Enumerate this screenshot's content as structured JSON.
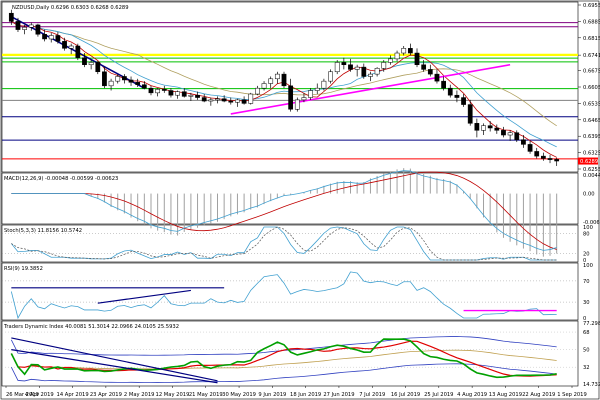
{
  "chart_data": {
    "type": "line",
    "symbol_header": "NZDUSD,Daily  0.6296 0.6303 0.6268 0.6289",
    "price_axis_ticks": [
      "0.6955",
      "0.6885",
      "0.6815",
      "0.6741",
      "0.6675",
      "0.6605",
      "0.6535",
      "0.6465",
      "0.6395",
      "0.6325",
      "0.6255"
    ],
    "price_ylim": [
      0.6255,
      0.6955
    ],
    "current_price_label": "0.6289",
    "x_tick_labels": [
      "26 Mar 2019",
      "4 Apr 2019",
      "14 Apr 2019",
      "23 Apr 2019",
      "2 May 2019",
      "12 May 2019",
      "21 May 2019",
      "30 May 2019",
      "9 Jun 2019",
      "18 Jun 2019",
      "27 Jun 2019",
      "7 Jul 2019",
      "16 Jul 2019",
      "25 Jul 2019",
      "4 Aug 2019",
      "13 Aug 2019",
      "22 Aug 2019",
      "1 Sep 2019"
    ],
    "candles": [
      {
        "o": 0.692,
        "h": 0.6935,
        "l": 0.687,
        "c": 0.6885
      },
      {
        "o": 0.6885,
        "h": 0.69,
        "l": 0.684,
        "c": 0.685
      },
      {
        "o": 0.685,
        "h": 0.687,
        "l": 0.683,
        "c": 0.686
      },
      {
        "o": 0.686,
        "h": 0.688,
        "l": 0.6845,
        "c": 0.687
      },
      {
        "o": 0.687,
        "h": 0.6875,
        "l": 0.682,
        "c": 0.683
      },
      {
        "o": 0.683,
        "h": 0.685,
        "l": 0.68,
        "c": 0.681
      },
      {
        "o": 0.681,
        "h": 0.6835,
        "l": 0.6795,
        "c": 0.6825
      },
      {
        "o": 0.6825,
        "h": 0.684,
        "l": 0.679,
        "c": 0.68
      },
      {
        "o": 0.68,
        "h": 0.6815,
        "l": 0.676,
        "c": 0.677
      },
      {
        "o": 0.677,
        "h": 0.679,
        "l": 0.6745,
        "c": 0.678
      },
      {
        "o": 0.678,
        "h": 0.679,
        "l": 0.672,
        "c": 0.673
      },
      {
        "o": 0.673,
        "h": 0.675,
        "l": 0.669,
        "c": 0.67
      },
      {
        "o": 0.67,
        "h": 0.672,
        "l": 0.668,
        "c": 0.671
      },
      {
        "o": 0.671,
        "h": 0.6715,
        "l": 0.666,
        "c": 0.667
      },
      {
        "o": 0.667,
        "h": 0.669,
        "l": 0.66,
        "c": 0.661
      },
      {
        "o": 0.661,
        "h": 0.664,
        "l": 0.659,
        "c": 0.663
      },
      {
        "o": 0.663,
        "h": 0.666,
        "l": 0.662,
        "c": 0.665
      },
      {
        "o": 0.665,
        "h": 0.666,
        "l": 0.662,
        "c": 0.6635
      },
      {
        "o": 0.6635,
        "h": 0.665,
        "l": 0.661,
        "c": 0.6625
      },
      {
        "o": 0.6625,
        "h": 0.664,
        "l": 0.6605,
        "c": 0.6615
      },
      {
        "o": 0.6615,
        "h": 0.663,
        "l": 0.6595,
        "c": 0.66
      },
      {
        "o": 0.66,
        "h": 0.661,
        "l": 0.657,
        "c": 0.658
      },
      {
        "o": 0.658,
        "h": 0.66,
        "l": 0.6565,
        "c": 0.6595
      },
      {
        "o": 0.6595,
        "h": 0.661,
        "l": 0.658,
        "c": 0.659
      },
      {
        "o": 0.659,
        "h": 0.66,
        "l": 0.656,
        "c": 0.657
      },
      {
        "o": 0.657,
        "h": 0.659,
        "l": 0.6555,
        "c": 0.6585
      },
      {
        "o": 0.6585,
        "h": 0.66,
        "l": 0.656,
        "c": 0.6565
      },
      {
        "o": 0.6565,
        "h": 0.658,
        "l": 0.6545,
        "c": 0.657
      },
      {
        "o": 0.657,
        "h": 0.6585,
        "l": 0.655,
        "c": 0.656
      },
      {
        "o": 0.656,
        "h": 0.6575,
        "l": 0.654,
        "c": 0.6545
      },
      {
        "o": 0.6545,
        "h": 0.656,
        "l": 0.6525,
        "c": 0.655
      },
      {
        "o": 0.655,
        "h": 0.6565,
        "l": 0.6535,
        "c": 0.6555
      },
      {
        "o": 0.6555,
        "h": 0.657,
        "l": 0.654,
        "c": 0.6545
      },
      {
        "o": 0.6545,
        "h": 0.656,
        "l": 0.653,
        "c": 0.654
      },
      {
        "o": 0.654,
        "h": 0.6555,
        "l": 0.652,
        "c": 0.655
      },
      {
        "o": 0.655,
        "h": 0.6565,
        "l": 0.653,
        "c": 0.6535
      },
      {
        "o": 0.6535,
        "h": 0.658,
        "l": 0.653,
        "c": 0.6575
      },
      {
        "o": 0.6575,
        "h": 0.661,
        "l": 0.657,
        "c": 0.66
      },
      {
        "o": 0.66,
        "h": 0.663,
        "l": 0.659,
        "c": 0.662
      },
      {
        "o": 0.662,
        "h": 0.665,
        "l": 0.66,
        "c": 0.664
      },
      {
        "o": 0.664,
        "h": 0.667,
        "l": 0.662,
        "c": 0.666
      },
      {
        "o": 0.666,
        "h": 0.667,
        "l": 0.66,
        "c": 0.661
      },
      {
        "o": 0.661,
        "h": 0.664,
        "l": 0.65,
        "c": 0.651
      },
      {
        "o": 0.651,
        "h": 0.656,
        "l": 0.65,
        "c": 0.655
      },
      {
        "o": 0.655,
        "h": 0.658,
        "l": 0.654,
        "c": 0.656
      },
      {
        "o": 0.656,
        "h": 0.66,
        "l": 0.655,
        "c": 0.659
      },
      {
        "o": 0.659,
        "h": 0.662,
        "l": 0.6575,
        "c": 0.66
      },
      {
        "o": 0.66,
        "h": 0.664,
        "l": 0.659,
        "c": 0.663
      },
      {
        "o": 0.663,
        "h": 0.668,
        "l": 0.662,
        "c": 0.667
      },
      {
        "o": 0.667,
        "h": 0.672,
        "l": 0.666,
        "c": 0.671
      },
      {
        "o": 0.671,
        "h": 0.673,
        "l": 0.668,
        "c": 0.67
      },
      {
        "o": 0.67,
        "h": 0.6725,
        "l": 0.667,
        "c": 0.668
      },
      {
        "o": 0.668,
        "h": 0.67,
        "l": 0.665,
        "c": 0.669
      },
      {
        "o": 0.669,
        "h": 0.6705,
        "l": 0.664,
        "c": 0.665
      },
      {
        "o": 0.665,
        "h": 0.667,
        "l": 0.663,
        "c": 0.666
      },
      {
        "o": 0.666,
        "h": 0.669,
        "l": 0.665,
        "c": 0.6685
      },
      {
        "o": 0.6685,
        "h": 0.672,
        "l": 0.667,
        "c": 0.671
      },
      {
        "o": 0.671,
        "h": 0.674,
        "l": 0.67,
        "c": 0.6725
      },
      {
        "o": 0.6725,
        "h": 0.676,
        "l": 0.6715,
        "c": 0.675
      },
      {
        "o": 0.675,
        "h": 0.678,
        "l": 0.674,
        "c": 0.677
      },
      {
        "o": 0.677,
        "h": 0.679,
        "l": 0.674,
        "c": 0.675
      },
      {
        "o": 0.675,
        "h": 0.677,
        "l": 0.669,
        "c": 0.67
      },
      {
        "o": 0.67,
        "h": 0.672,
        "l": 0.667,
        "c": 0.668
      },
      {
        "o": 0.668,
        "h": 0.67,
        "l": 0.665,
        "c": 0.666
      },
      {
        "o": 0.666,
        "h": 0.668,
        "l": 0.662,
        "c": 0.663
      },
      {
        "o": 0.663,
        "h": 0.665,
        "l": 0.659,
        "c": 0.66
      },
      {
        "o": 0.66,
        "h": 0.6615,
        "l": 0.656,
        "c": 0.657
      },
      {
        "o": 0.657,
        "h": 0.659,
        "l": 0.654,
        "c": 0.656
      },
      {
        "o": 0.656,
        "h": 0.6575,
        "l": 0.652,
        "c": 0.653
      },
      {
        "o": 0.653,
        "h": 0.655,
        "l": 0.644,
        "c": 0.645
      },
      {
        "o": 0.645,
        "h": 0.647,
        "l": 0.639,
        "c": 0.642
      },
      {
        "o": 0.642,
        "h": 0.645,
        "l": 0.64,
        "c": 0.644
      },
      {
        "o": 0.644,
        "h": 0.646,
        "l": 0.6415,
        "c": 0.643
      },
      {
        "o": 0.643,
        "h": 0.6445,
        "l": 0.6405,
        "c": 0.642
      },
      {
        "o": 0.642,
        "h": 0.6435,
        "l": 0.639,
        "c": 0.64
      },
      {
        "o": 0.64,
        "h": 0.642,
        "l": 0.6375,
        "c": 0.641
      },
      {
        "o": 0.641,
        "h": 0.642,
        "l": 0.637,
        "c": 0.638
      },
      {
        "o": 0.638,
        "h": 0.64,
        "l": 0.6345,
        "c": 0.636
      },
      {
        "o": 0.636,
        "h": 0.6375,
        "l": 0.632,
        "c": 0.633
      },
      {
        "o": 0.633,
        "h": 0.6345,
        "l": 0.63,
        "c": 0.631
      },
      {
        "o": 0.631,
        "h": 0.6325,
        "l": 0.629,
        "c": 0.63
      },
      {
        "o": 0.63,
        "h": 0.6315,
        "l": 0.628,
        "c": 0.6295
      },
      {
        "o": 0.6296,
        "h": 0.6303,
        "l": 0.6268,
        "c": 0.6289
      }
    ],
    "horizontal_levels": [
      {
        "price": 0.688,
        "color": "#800080"
      },
      {
        "price": 0.6862,
        "color": "#800080"
      },
      {
        "price": 0.6742,
        "color": "#ffff00"
      },
      {
        "price": 0.6728,
        "color": "#00c000"
      },
      {
        "price": 0.6712,
        "color": "#00c000"
      },
      {
        "price": 0.6598,
        "color": "#00c000"
      },
      {
        "price": 0.6548,
        "color": "#808080"
      },
      {
        "price": 0.6478,
        "color": "#000080"
      },
      {
        "price": 0.6378,
        "color": "#000080"
      },
      {
        "price": 0.6298,
        "color": "#ff0000"
      }
    ],
    "price_trendlines": [
      {
        "x1": 0,
        "y1": 0.6905,
        "x2": 20,
        "y2": 0.66,
        "color": "#000080"
      },
      {
        "x1": 33,
        "y1": 0.649,
        "x2": 75,
        "y2": 0.67,
        "color": "#ff00ff"
      }
    ],
    "macd": {
      "label": "MACD(12,26,9) -0.00048 -0.00599 -0.00623",
      "ticks": [
        "0.00441",
        "0.00",
        "-0.00675"
      ],
      "ylim": [
        -0.00675,
        0.00441
      ]
    },
    "stoch": {
      "label": "Stoch(5,3,3) 11.8156 10.5742",
      "ticks": [
        "100",
        "80",
        "20",
        "0"
      ],
      "ylim": [
        0,
        100
      ]
    },
    "rsi": {
      "label": "RSI(9) 19.3852",
      "ticks": [
        "100",
        "70",
        "30",
        "0"
      ],
      "ylim": [
        0,
        100
      ]
    },
    "tdi": {
      "label": "Traders Dynamic Index 40.0081 51.3014 22.0966 24.0105 25.5932",
      "ticks": [
        "77.2982",
        "68",
        "50",
        "32",
        "14.7326"
      ],
      "ylim": [
        14.7326,
        77.2982
      ]
    },
    "colors": {
      "bull_candle": "#ffffff",
      "bear_candle": "#000000",
      "ma_red": "#c00000",
      "ma_cyan": "#40a0d0",
      "ma_khaki": "#b0a060",
      "tdi_green": "#00a000",
      "tdi_red": "#e00000",
      "tdi_blue_band": "#3040c0",
      "tdi_khaki": "#c0a050"
    }
  }
}
